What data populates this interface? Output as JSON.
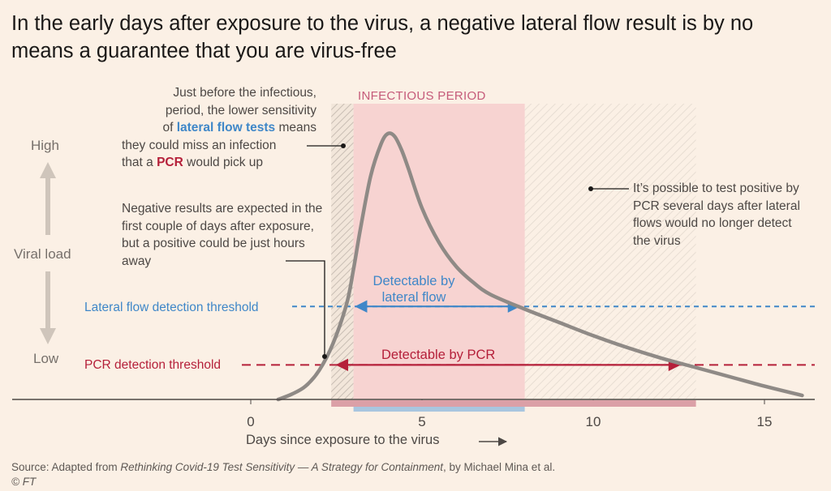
{
  "title": "In the early days after exposure to the virus, a negative lateral flow result is by no means a guarantee that you are virus-free",
  "annotations": {
    "infectious_period": "INFECTIOUS PERIOD",
    "note_before": {
      "line1": "Just before the infectious,",
      "line2": "period, the lower sensitivity",
      "line3_pre": "of ",
      "line3_em": "lateral flow tests",
      "line3_post": " means",
      "line4": "they could miss an infection",
      "line5_pre": "that a ",
      "line5_em": "PCR",
      "line5_post": " would pick up"
    },
    "note_negative": "Negative results are expected in the first couple of days after exposure, but a positive could be just hours away",
    "note_after": "It’s possible to test positive by PCR several days after lateral flows would no longer detect the virus",
    "detectable_lf": "Detectable by lateral flow",
    "detectable_pcr": "Detectable by PCR"
  },
  "yaxis": {
    "high": "High",
    "label": "Viral load",
    "low": "Low"
  },
  "source": {
    "prefix": "Source: Adapted from ",
    "work": "Rethinking Covid-19 Test Sensitivity — A Strategy for Containment",
    "suffix": ", by Michael Mina et al.",
    "credit": "© FT"
  },
  "colors": {
    "background": "#fbf0e5",
    "infectious": "#f7d3d1",
    "lateral_flow": "#3f87c8",
    "pcr": "#b5203a",
    "curve": "#8f8a86",
    "lf_bar": "#a8c6df",
    "pcr_bar": "#dba0a7"
  },
  "chart_data": {
    "type": "line",
    "xlabel": "Days since exposure to the virus",
    "xlim": [
      -1.1,
      16.1
    ],
    "xticks": [
      0,
      5,
      10,
      15
    ],
    "ylabel": "Viral load",
    "ylim": [
      0,
      1
    ],
    "series": [
      {
        "name": "Viral load",
        "x": [
          0.8,
          1.2,
          1.6,
          2.0,
          2.4,
          2.8,
          3.0,
          3.2,
          3.5,
          3.8,
          4.0,
          4.2,
          4.4,
          4.6,
          5.0,
          5.5,
          6.0,
          6.5,
          7.0,
          8.0,
          9.0,
          10.0,
          11.0,
          12.0,
          13.0,
          14.0,
          15.0,
          16.1
        ],
        "y": [
          0.0,
          0.02,
          0.05,
          0.11,
          0.21,
          0.36,
          0.49,
          0.64,
          0.84,
          0.96,
          1.0,
          0.99,
          0.94,
          0.87,
          0.72,
          0.59,
          0.5,
          0.44,
          0.395,
          0.34,
          0.29,
          0.24,
          0.195,
          0.155,
          0.12,
          0.085,
          0.05,
          0.015
        ]
      }
    ],
    "thresholds": [
      {
        "name": "Lateral flow detection threshold",
        "y": 0.35
      },
      {
        "name": "PCR detection threshold",
        "y": 0.13
      }
    ],
    "periods": [
      {
        "name": "Infectious period",
        "from": 3.0,
        "to": 8.0
      },
      {
        "name": "Detectable by lateral flow",
        "from": 3.0,
        "to": 8.0
      },
      {
        "name": "Detectable by PCR",
        "from": 2.35,
        "to": 13.0
      }
    ]
  }
}
